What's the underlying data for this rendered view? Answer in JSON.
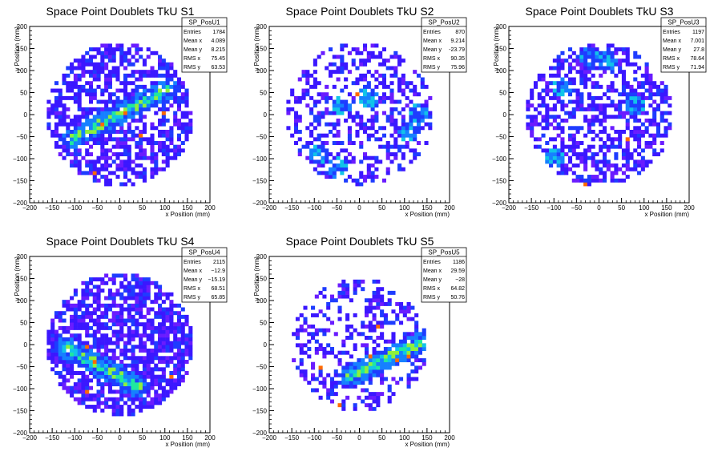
{
  "chart_data": [
    {
      "type": "heatmap",
      "title": "Space Point Doublets TkU S1",
      "xlabel": "x Position (mm)",
      "ylabel": "y Position (mm)",
      "xlim": [
        -200,
        200
      ],
      "ylim": [
        -200,
        200
      ],
      "xticks": [
        "−200",
        "−150",
        "−100",
        "−50",
        "0",
        "50",
        "100",
        "150",
        "200"
      ],
      "yticks": [
        "−200",
        "−150",
        "−100",
        "−50",
        "0",
        "50",
        "100",
        "150",
        "200"
      ],
      "stats": {
        "name": "SP_PosU1",
        "rows": [
          {
            "label": "Entries",
            "value": "1784"
          },
          {
            "label": "Mean x",
            "value": "4.089"
          },
          {
            "label": "Mean y",
            "value": "8.215"
          },
          {
            "label": "RMS x",
            "value": "75.45"
          },
          {
            "label": "RMS y",
            "value": "63.53"
          }
        ]
      },
      "band": {
        "x1": -105,
        "y1": -55,
        "x2": 110,
        "y2": 60,
        "width": 22
      },
      "hot_spots": [],
      "distribution": {
        "radius_mm": 162,
        "occupancy": 0.62,
        "seed": 11
      },
      "bin_width_mm": 8.5
    },
    {
      "type": "heatmap",
      "title": "Space Point Doublets TkU S2",
      "xlabel": "x Position (mm)",
      "ylabel": "y Position (mm)",
      "xlim": [
        -200,
        200
      ],
      "ylim": [
        -200,
        200
      ],
      "xticks": [
        "−200",
        "−150",
        "−100",
        "−50",
        "0",
        "50",
        "100",
        "150",
        "200"
      ],
      "yticks": [
        "−200",
        "−150",
        "−100",
        "−50",
        "0",
        "50",
        "100",
        "150",
        "200"
      ],
      "stats": {
        "name": "SP_PosU2",
        "rows": [
          {
            "label": "Entries",
            "value": "870"
          },
          {
            "label": "Mean x",
            "value": "9.214"
          },
          {
            "label": "Mean y",
            "value": "-23.79"
          },
          {
            "label": "RMS x",
            "value": "90.35"
          },
          {
            "label": "RMS y",
            "value": "75.96"
          }
        ]
      },
      "band": null,
      "hot_spots": [
        [
          -50,
          -120
        ],
        [
          -90,
          -90
        ],
        [
          110,
          -40
        ],
        [
          130,
          0
        ],
        [
          20,
          40
        ],
        [
          -40,
          20
        ]
      ],
      "distribution": {
        "radius_mm": 162,
        "occupancy": 0.38,
        "seed": 23
      },
      "bin_width_mm": 8.5
    },
    {
      "type": "heatmap",
      "title": "Space Point Doublets TkU S3",
      "xlabel": "x Position (mm)",
      "ylabel": "y Position (mm)",
      "xlim": [
        -200,
        200
      ],
      "ylim": [
        -200,
        200
      ],
      "xticks": [
        "−200",
        "−150",
        "−100",
        "−50",
        "0",
        "50",
        "100",
        "150",
        "200"
      ],
      "yticks": [
        "−200",
        "−150",
        "−100",
        "−50",
        "0",
        "50",
        "100",
        "150",
        "200"
      ],
      "stats": {
        "name": "SP_PosU3",
        "rows": [
          {
            "label": "Entries",
            "value": "1197"
          },
          {
            "label": "Mean x",
            "value": "7.001"
          },
          {
            "label": "Mean y",
            "value": "27.8"
          },
          {
            "label": "RMS x",
            "value": "78.64"
          },
          {
            "label": "RMS y",
            "value": "71.94"
          }
        ]
      },
      "band": null,
      "hot_spots": [
        [
          -20,
          130
        ],
        [
          20,
          120
        ],
        [
          80,
          20
        ],
        [
          -80,
          60
        ],
        [
          -100,
          -100
        ]
      ],
      "distribution": {
        "radius_mm": 162,
        "occupancy": 0.5,
        "seed": 37
      },
      "bin_width_mm": 8.5
    },
    {
      "type": "heatmap",
      "title": "Space Point Doublets TkU S4",
      "xlabel": "x Position (mm)",
      "ylabel": "y Position (mm)",
      "xlim": [
        -200,
        200
      ],
      "ylim": [
        -200,
        200
      ],
      "xticks": [
        "−200",
        "−150",
        "−100",
        "−50",
        "0",
        "50",
        "100",
        "150",
        "200"
      ],
      "yticks": [
        "−200",
        "−150",
        "−100",
        "−50",
        "0",
        "50",
        "100",
        "150",
        "200"
      ],
      "stats": {
        "name": "SP_PosU4",
        "rows": [
          {
            "label": "Entries",
            "value": "2115"
          },
          {
            "label": "Mean x",
            "value": "−12.9"
          },
          {
            "label": "Mean y",
            "value": "−15.19"
          },
          {
            "label": "RMS x",
            "value": "68.51"
          },
          {
            "label": "RMS y",
            "value": "65.85"
          }
        ]
      },
      "band": {
        "x1": -120,
        "y1": -5,
        "x2": 40,
        "y2": -95,
        "width": 24
      },
      "hot_spots": [],
      "distribution": {
        "radius_mm": 162,
        "occupancy": 0.7,
        "seed": 53
      },
      "bin_width_mm": 8.5
    },
    {
      "type": "heatmap",
      "title": "Space Point Doublets TkU S5",
      "xlabel": "x Position (mm)",
      "ylabel": "y Position (mm)",
      "xlim": [
        -200,
        200
      ],
      "ylim": [
        -200,
        200
      ],
      "xticks": [
        "−200",
        "−150",
        "−100",
        "−50",
        "0",
        "50",
        "100",
        "150",
        "200"
      ],
      "yticks": [
        "−200",
        "−150",
        "−100",
        "−50",
        "0",
        "50",
        "100",
        "150",
        "200"
      ],
      "stats": {
        "name": "SP_PosU5",
        "rows": [
          {
            "label": "Entries",
            "value": "1186"
          },
          {
            "label": "Mean x",
            "value": "29.59"
          },
          {
            "label": "Mean y",
            "value": "−28"
          },
          {
            "label": "RMS x",
            "value": "64.82"
          },
          {
            "label": "RMS y",
            "value": "50.76"
          }
        ]
      },
      "band": {
        "x1": -20,
        "y1": -70,
        "x2": 150,
        "y2": 10,
        "width": 24
      },
      "hot_spots": [],
      "distribution": {
        "radius_mm": 150,
        "occupancy": 0.34,
        "seed": 71
      },
      "bin_width_mm": 8.5
    }
  ],
  "palette": [
    "#6a1cff",
    "#3b17ff",
    "#1e3cff",
    "#1680ff",
    "#11c4e8",
    "#1fe8a0",
    "#8ef03c",
    "#f2e830",
    "#ff6a00",
    "#ff0000"
  ]
}
